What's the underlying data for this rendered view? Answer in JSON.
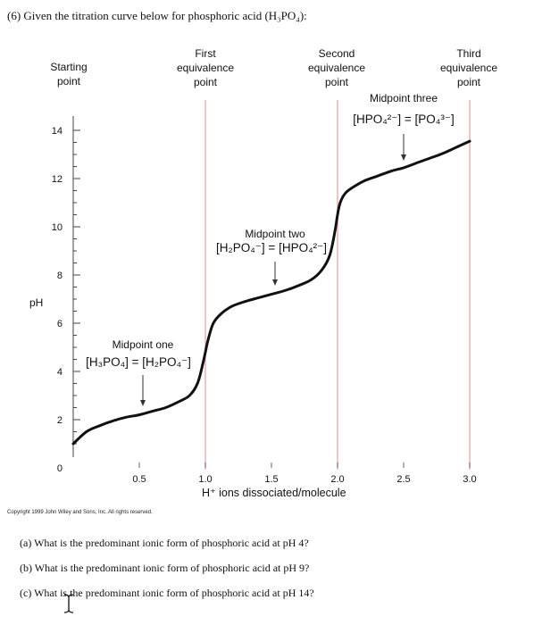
{
  "question": {
    "title": "(6) Given the titration curve below for phosphoric acid (H₃PO₄):",
    "subquestions": [
      "(a) What is the predominant ionic form of phosphoric acid at pH 4?",
      "(b) What is the predominant ionic form of phosphoric acid at pH 9?",
      "(c) What is the predominant ionic form of phosphoric acid at pH 14?"
    ]
  },
  "copyright": "Copyright 1999 John Wiley and Sons, Inc. All rights reserved.",
  "chart_data": {
    "type": "line",
    "xlabel": "H⁺ ions dissociated/molecule",
    "ylabel": "pH",
    "xlim": [
      0,
      3.0
    ],
    "ylim": [
      0,
      14
    ],
    "x_ticks": [
      "0.5",
      "1.0",
      "1.5",
      "2.0",
      "2.5",
      "3.0"
    ],
    "y_ticks": [
      "0",
      "2",
      "4",
      "6",
      "8",
      "10",
      "12",
      "14"
    ],
    "series": [
      {
        "x": [
          0,
          0.1,
          0.2,
          0.3,
          0.4,
          0.5,
          0.6,
          0.7,
          0.8,
          0.88,
          0.94,
          0.98,
          1.0,
          1.02,
          1.06,
          1.12,
          1.2,
          1.3,
          1.4,
          1.5,
          1.6,
          1.7,
          1.8,
          1.88,
          1.94,
          1.98,
          2.0,
          2.02,
          2.06,
          2.12,
          2.2,
          2.3,
          2.4,
          2.5,
          2.6,
          2.7,
          2.8,
          2.9,
          3.0
        ],
        "y": [
          1.0,
          1.5,
          1.75,
          1.95,
          2.1,
          2.2,
          2.35,
          2.5,
          2.75,
          3.0,
          3.5,
          4.3,
          4.8,
          5.3,
          6.0,
          6.4,
          6.7,
          6.9,
          7.05,
          7.2,
          7.35,
          7.55,
          7.8,
          8.2,
          8.8,
          9.8,
          10.5,
          11.0,
          11.4,
          11.65,
          11.9,
          12.1,
          12.3,
          12.45,
          12.65,
          12.85,
          13.05,
          13.3,
          13.55
        ]
      }
    ],
    "markers": [
      {
        "label_top": "Starting",
        "label_bottom": "point",
        "x": 0
      },
      {
        "label_top": "First",
        "label_mid": "equivalence",
        "label_bottom": "point",
        "x": 1.0
      },
      {
        "label_top": "Second",
        "label_mid": "equivalence",
        "label_bottom": "point",
        "x": 2.0
      },
      {
        "label_top": "Third",
        "label_mid": "equivalence",
        "label_bottom": "point",
        "x": 3.0
      }
    ],
    "midpoints": [
      {
        "title": "Midpoint one",
        "equation": "[H₃PO₄] = [H₂PO₄⁻]",
        "x": 0.5,
        "y": 2.15
      },
      {
        "title": "Midpoint two",
        "equation": "[H₂PO₄⁻] = [HPO₄²⁻]",
        "x": 1.5,
        "y": 7.2
      },
      {
        "title": "Midpoint three",
        "equation": "[HPO₄²⁻] = [PO₄³⁻]",
        "x": 2.5,
        "y": 12.4
      }
    ],
    "grid": "vertical lines at equivalence points",
    "line_color": "#111111",
    "guide_color": "#e8b4b4"
  }
}
